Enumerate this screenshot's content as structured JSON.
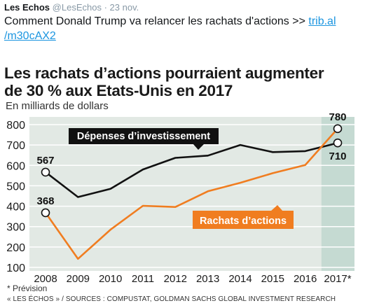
{
  "tweet": {
    "author": "Les Echos",
    "handle": "@LesEchos",
    "separator": "·",
    "date": "23 nov.",
    "text": "Comment Donald Trump va relancer les rachats d'actions >> ",
    "link_line1": "trib.al",
    "link_line2": "/m30cAX2"
  },
  "chart_data": {
    "type": "line",
    "title_line1": "Les rachats d’actions pourraient augmenter",
    "title_line2": "de 30 % aux Etats-Unis en 2017",
    "subtitle": "En milliards de dollars",
    "categories": [
      "2008",
      "2009",
      "2010",
      "2011",
      "2012",
      "2013",
      "2014",
      "2015",
      "2016",
      "2017*"
    ],
    "ylim": [
      100,
      800
    ],
    "yticks": [
      "100",
      "200",
      "300",
      "400",
      "500",
      "600",
      "700",
      "800"
    ],
    "grid": true,
    "series": [
      {
        "name": "Dépenses d’investissement",
        "color": "#111111",
        "values": [
          567,
          445,
          485,
          580,
          637,
          648,
          700,
          665,
          670,
          710
        ],
        "start_label": "567",
        "end_label": "710"
      },
      {
        "name": "Rachats d’actions",
        "color": "#f07d20",
        "values": [
          368,
          142,
          285,
          402,
          396,
          473,
          515,
          562,
          602,
          780
        ],
        "start_label": "368",
        "end_label": "780"
      }
    ],
    "forecast_band_color": "#c5dad2",
    "background_color": "#e2e9e4",
    "footnote": "* Prévision",
    "sources": "« LES ÉCHOS » / SOURCES : COMPUSTAT, GOLDMAN SACHS GLOBAL INVESTMENT RESEARCH"
  }
}
